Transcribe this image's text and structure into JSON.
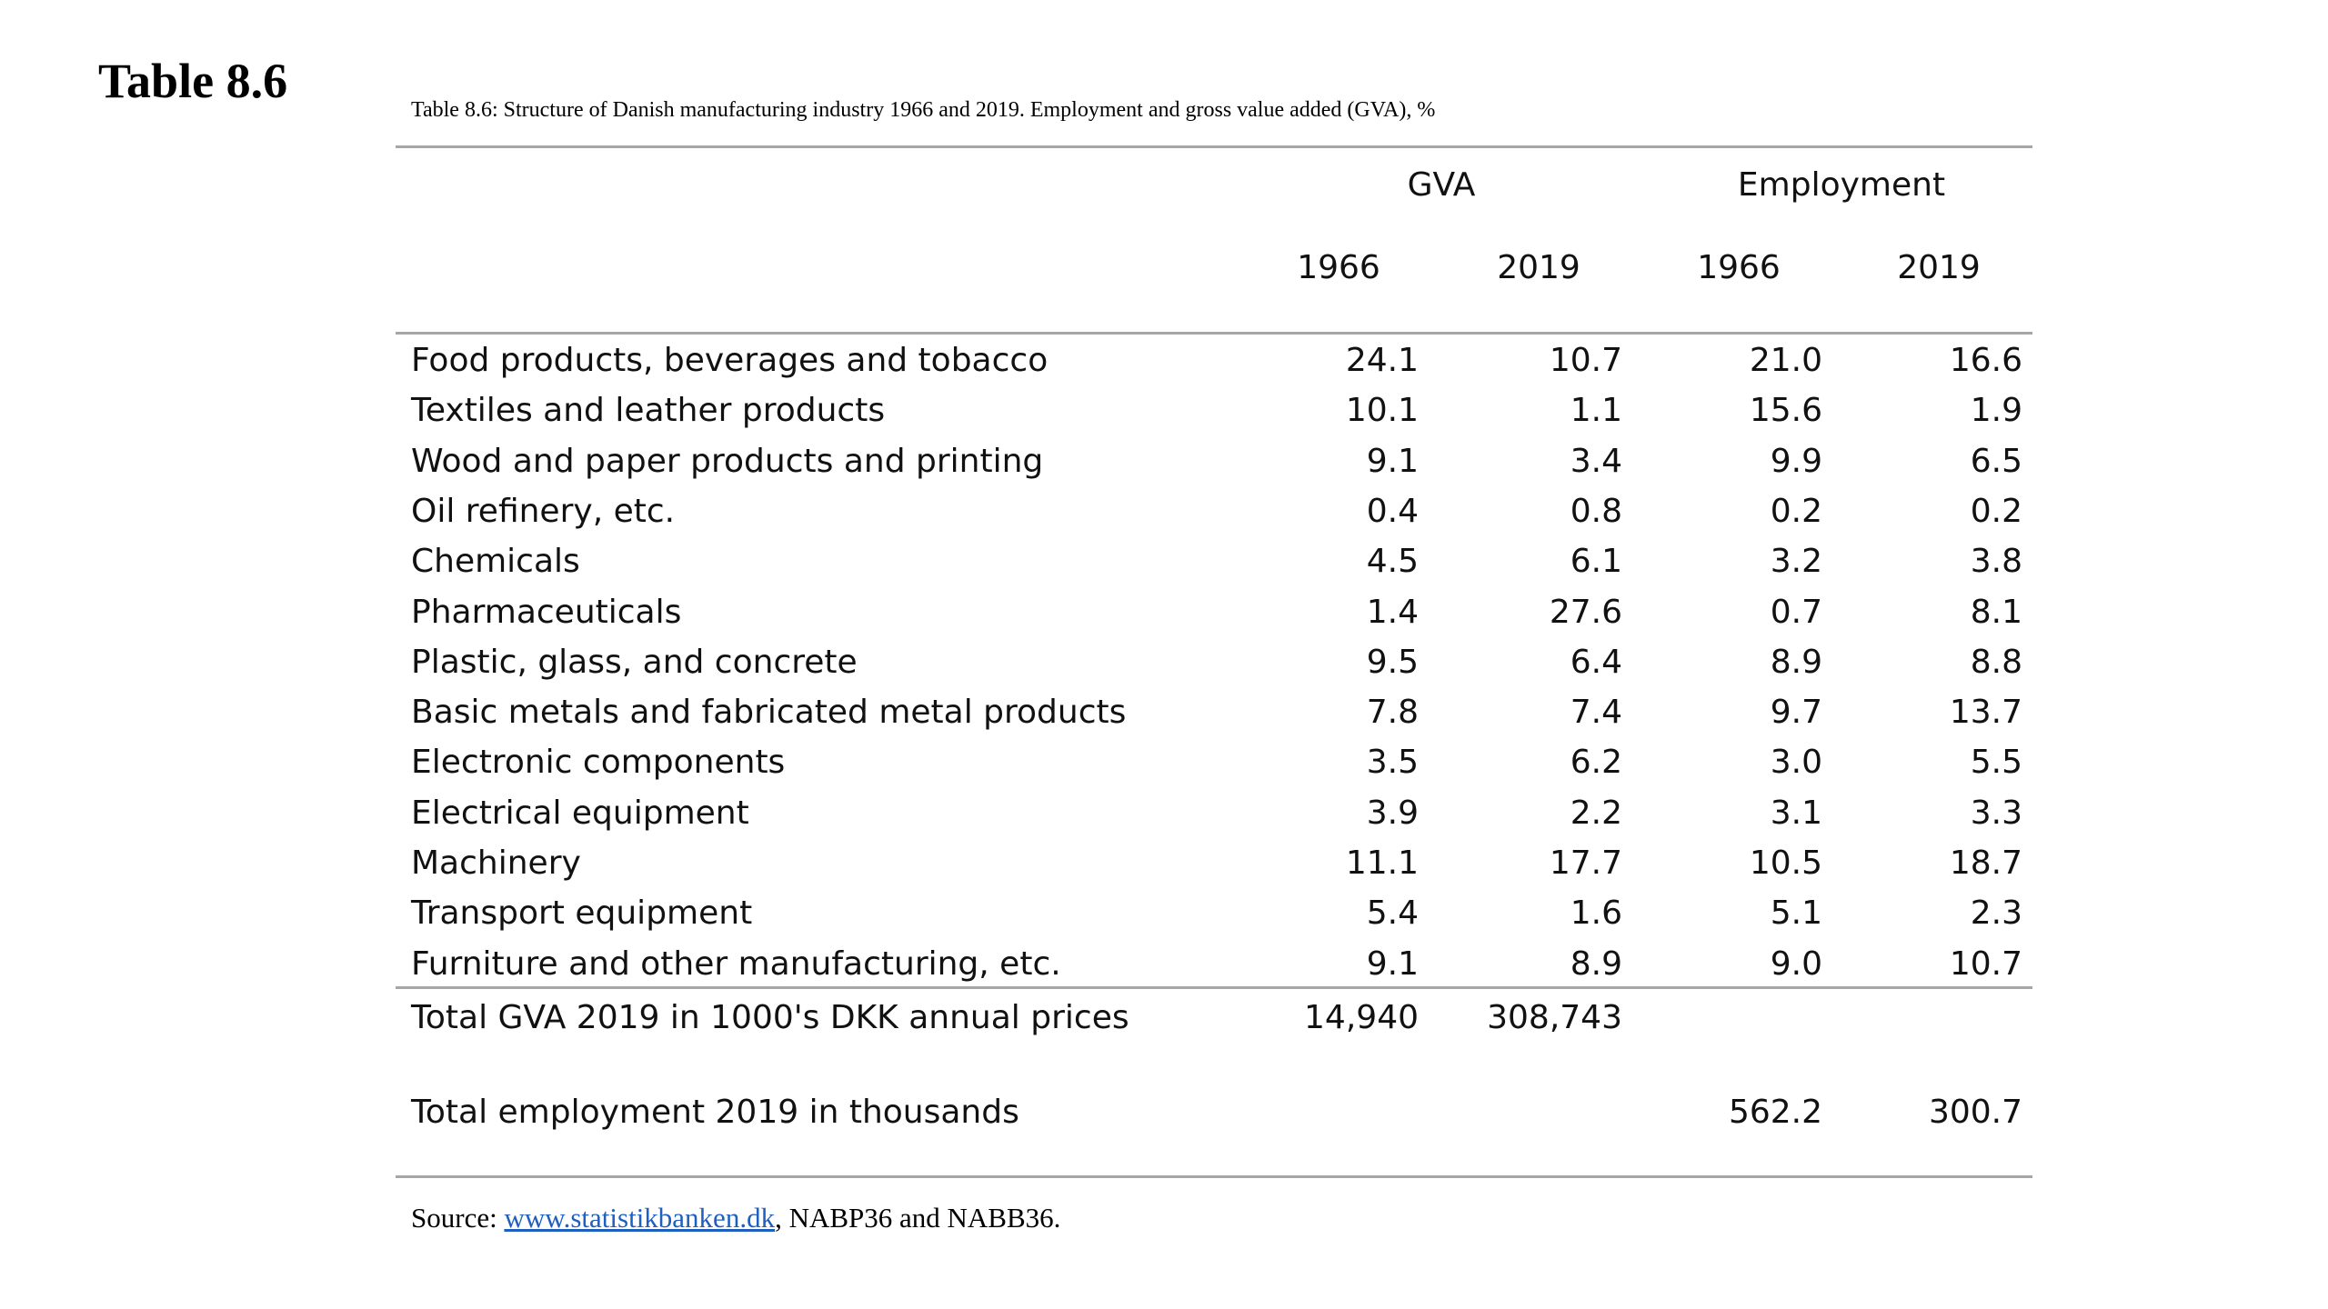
{
  "slide": {
    "title": "Table 8.6"
  },
  "table": {
    "caption": "Table 8.6: Structure of Danish manufacturing industry 1966 and 2019. Employment and gross value added (GVA), %",
    "groups": [
      "GVA",
      "Employment"
    ],
    "years": [
      "1966",
      "2019",
      "1966",
      "2019"
    ],
    "rows": [
      {
        "label": "Food products, beverages and tobacco",
        "gva_1966": "24.1",
        "gva_2019": "10.7",
        "emp_1966": "21.0",
        "emp_2019": "16.6"
      },
      {
        "label": "Textiles and leather products",
        "gva_1966": "10.1",
        "gva_2019": "1.1",
        "emp_1966": "15.6",
        "emp_2019": "1.9"
      },
      {
        "label": "Wood and paper products and printing",
        "gva_1966": "9.1",
        "gva_2019": "3.4",
        "emp_1966": "9.9",
        "emp_2019": "6.5"
      },
      {
        "label": "Oil refinery, etc.",
        "gva_1966": "0.4",
        "gva_2019": "0.8",
        "emp_1966": "0.2",
        "emp_2019": "0.2"
      },
      {
        "label": "Chemicals",
        "gva_1966": "4.5",
        "gva_2019": "6.1",
        "emp_1966": "3.2",
        "emp_2019": "3.8"
      },
      {
        "label": "Pharmaceuticals",
        "gva_1966": "1.4",
        "gva_2019": "27.6",
        "emp_1966": "0.7",
        "emp_2019": "8.1"
      },
      {
        "label": "Plastic, glass, and concrete",
        "gva_1966": "9.5",
        "gva_2019": "6.4",
        "emp_1966": "8.9",
        "emp_2019": "8.8"
      },
      {
        "label": "Basic metals and fabricated metal products",
        "gva_1966": "7.8",
        "gva_2019": "7.4",
        "emp_1966": "9.7",
        "emp_2019": "13.7"
      },
      {
        "label": "Electronic components",
        "gva_1966": "3.5",
        "gva_2019": "6.2",
        "emp_1966": "3.0",
        "emp_2019": "5.5"
      },
      {
        "label": "Electrical equipment",
        "gva_1966": "3.9",
        "gva_2019": "2.2",
        "emp_1966": "3.1",
        "emp_2019": "3.3"
      },
      {
        "label": "Machinery",
        "gva_1966": "11.1",
        "gva_2019": "17.7",
        "emp_1966": "10.5",
        "emp_2019": "18.7"
      },
      {
        "label": "Transport equipment",
        "gva_1966": "5.4",
        "gva_2019": "1.6",
        "emp_1966": "5.1",
        "emp_2019": "2.3"
      },
      {
        "label": "Furniture and other manufacturing, etc.",
        "gva_1966": "9.1",
        "gva_2019": "8.9",
        "emp_1966": "9.0",
        "emp_2019": "10.7"
      }
    ],
    "totals": {
      "gva": {
        "label": "Total GVA 2019 in 1000's DKK annual prices",
        "gva_1966": "14,940",
        "gva_2019": "308,743"
      },
      "employment": {
        "label": "Total employment 2019 in thousands",
        "emp_1966": "562.2",
        "emp_2019": "300.7"
      }
    },
    "source": {
      "prefix": "Source: ",
      "link_text": "www.statistikbanken.dk",
      "suffix": ", NABP36 and NABB36."
    }
  }
}
